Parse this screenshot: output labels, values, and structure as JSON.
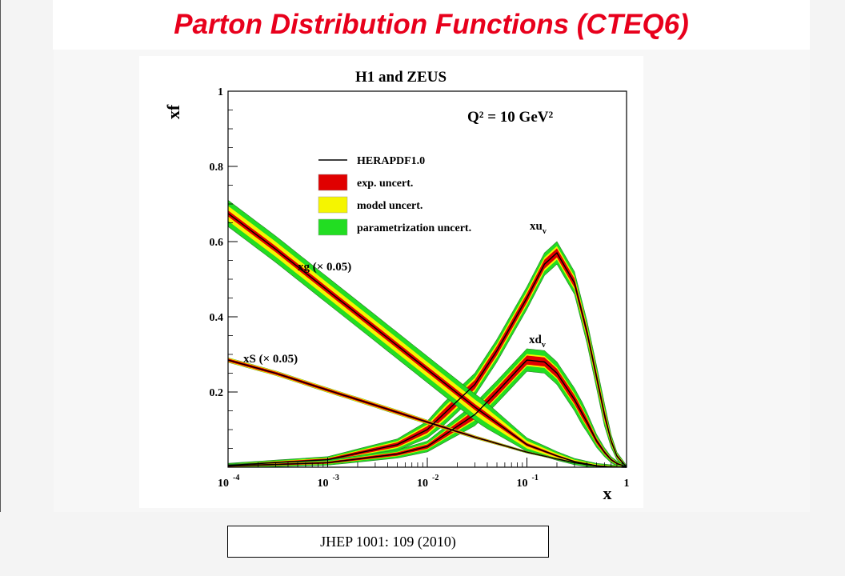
{
  "page_title": "Parton Distribution Functions (CTEQ6)",
  "citation": "JHEP  1001: 109 (2010)",
  "colors": {
    "title": "#e8001c",
    "exp": "#e00000",
    "model": "#f5f500",
    "param": "#22dd22",
    "central": "#000000"
  },
  "chart_data": {
    "type": "line",
    "title": "H1 and ZEUS",
    "annotation": "Q² = 10 GeV²",
    "xlabel": "x",
    "ylabel": "xf",
    "x_scale": "log",
    "xlim": [
      0.0001,
      1
    ],
    "ylim": [
      0,
      1
    ],
    "x_ticks": [
      {
        "value": 0.0001,
        "label": "10",
        "exp": "-4"
      },
      {
        "value": 0.001,
        "label": "10",
        "exp": "-3"
      },
      {
        "value": 0.01,
        "label": "10",
        "exp": "-2"
      },
      {
        "value": 0.1,
        "label": "10",
        "exp": "-1"
      },
      {
        "value": 1,
        "label": "1",
        "exp": ""
      }
    ],
    "y_ticks": [
      {
        "value": 0.2,
        "label": "0.2"
      },
      {
        "value": 0.4,
        "label": "0.4"
      },
      {
        "value": 0.6,
        "label": "0.6"
      },
      {
        "value": 0.8,
        "label": "0.8"
      },
      {
        "value": 1.0,
        "label": "1"
      }
    ],
    "grid": false,
    "legend_position": "upper-left",
    "legend": [
      {
        "label": "HERAPDF1.0",
        "kind": "line",
        "color": "#000000"
      },
      {
        "label": "exp. uncert.",
        "kind": "box",
        "color": "#e00000"
      },
      {
        "label": "model uncert.",
        "kind": "box",
        "color": "#f5f500"
      },
      {
        "label": "parametrization uncert.",
        "kind": "box",
        "color": "#22dd22"
      }
    ],
    "series": [
      {
        "name": "xu",
        "label_sub": "v",
        "x": [
          0.0001,
          0.001,
          0.005,
          0.01,
          0.03,
          0.05,
          0.1,
          0.15,
          0.2,
          0.3,
          0.4,
          0.5,
          0.6,
          0.7,
          0.8,
          1.0
        ],
        "y": [
          0.005,
          0.02,
          0.06,
          0.1,
          0.22,
          0.31,
          0.45,
          0.54,
          0.57,
          0.49,
          0.36,
          0.24,
          0.14,
          0.07,
          0.03,
          0.0
        ],
        "exp_unc": 0.012,
        "model_unc": 0.018,
        "param_unc": 0.03
      },
      {
        "name": "xd",
        "label_sub": "v",
        "x": [
          0.0001,
          0.001,
          0.005,
          0.01,
          0.03,
          0.05,
          0.1,
          0.15,
          0.2,
          0.3,
          0.4,
          0.5,
          0.6,
          0.7,
          0.8,
          1.0
        ],
        "y": [
          0.003,
          0.012,
          0.035,
          0.055,
          0.14,
          0.2,
          0.285,
          0.28,
          0.25,
          0.18,
          0.12,
          0.07,
          0.04,
          0.02,
          0.01,
          0.0
        ],
        "exp_unc": 0.012,
        "model_unc": 0.016,
        "param_unc": 0.03
      },
      {
        "name": "xg (× 0.05)",
        "label_sub": "",
        "x": [
          0.0001,
          0.0003,
          0.001,
          0.003,
          0.01,
          0.03,
          0.1,
          0.2,
          0.3,
          0.5,
          0.7,
          1.0
        ],
        "y": [
          0.675,
          0.58,
          0.47,
          0.37,
          0.26,
          0.16,
          0.06,
          0.03,
          0.015,
          0.004,
          0.001,
          0.0
        ],
        "exp_unc": 0.008,
        "model_unc": 0.02,
        "param_unc": 0.035
      },
      {
        "name": "xS (× 0.05)",
        "label_sub": "",
        "x": [
          0.0001,
          0.0003,
          0.001,
          0.003,
          0.01,
          0.03,
          0.1,
          0.2,
          0.3,
          0.5,
          0.7,
          1.0
        ],
        "y": [
          0.285,
          0.25,
          0.205,
          0.165,
          0.12,
          0.08,
          0.04,
          0.022,
          0.012,
          0.003,
          0.001,
          0.0
        ],
        "exp_unc": 0.004,
        "model_unc": 0.006,
        "param_unc": 0.006
      }
    ]
  }
}
